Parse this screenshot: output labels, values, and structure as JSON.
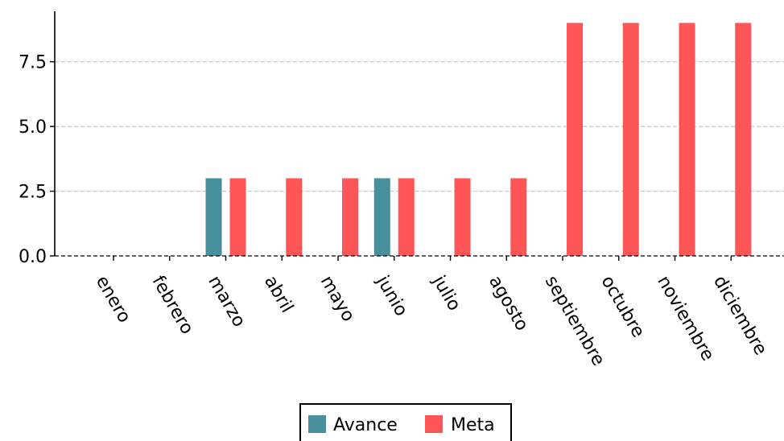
{
  "chart_data": {
    "type": "bar",
    "categories": [
      "enero",
      "febrero",
      "marzo",
      "abril",
      "mayo",
      "junio",
      "julio",
      "agosto",
      "septiembre",
      "octubre",
      "noviembre",
      "diciembre"
    ],
    "series": [
      {
        "name": "Avance",
        "color": "#468f9b",
        "values": [
          0,
          0,
          3,
          0,
          0,
          3,
          0,
          0,
          0,
          0,
          0,
          0
        ]
      },
      {
        "name": "Meta",
        "color": "#fe5656",
        "values": [
          0,
          0,
          3,
          3,
          3,
          3,
          3,
          3,
          9,
          9,
          9,
          9
        ]
      }
    ],
    "title": "",
    "xlabel": "",
    "ylabel": "",
    "ylim": [
      0,
      9.45
    ],
    "yticks": [
      0.0,
      2.5,
      5.0,
      7.5
    ],
    "ytick_labels": [
      "0.0",
      "2.5",
      "5.0",
      "7.5"
    ],
    "grid": "horizontal dashed",
    "legend_position": "bottom-center"
  }
}
